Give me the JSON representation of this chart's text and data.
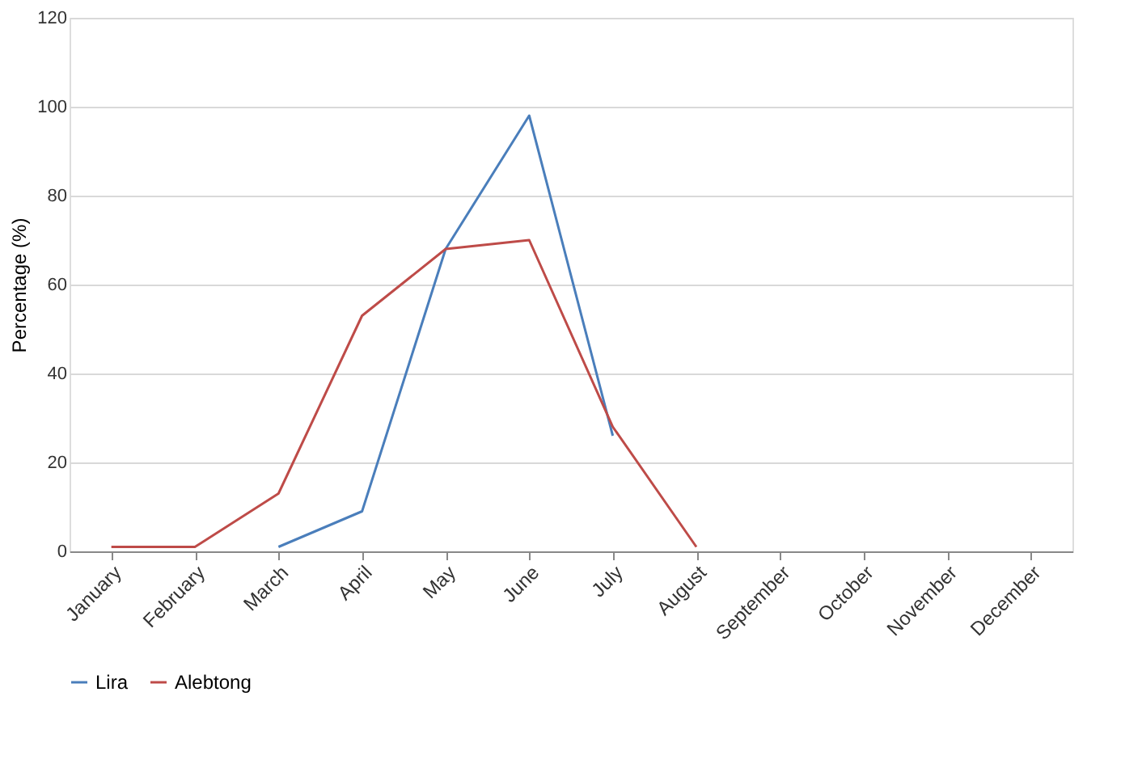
{
  "chart_data": {
    "type": "line",
    "ylabel": "Percentage (%)",
    "categories": [
      "January",
      "February",
      "March",
      "April",
      "May",
      "June",
      "July",
      "August",
      "September",
      "October",
      "November",
      "December"
    ],
    "series": [
      {
        "name": "Lira",
        "color": "#4a7ebb",
        "values": [
          null,
          null,
          1,
          9,
          68,
          98,
          26,
          null,
          null,
          null,
          null,
          null
        ]
      },
      {
        "name": "Alebtong",
        "color": "#be4b48",
        "values": [
          1,
          1,
          13,
          53,
          68,
          70,
          28,
          1,
          null,
          null,
          null,
          null
        ]
      }
    ],
    "ylim": [
      0,
      120
    ],
    "yticks": [
      0,
      20,
      40,
      60,
      80,
      100,
      120
    ],
    "grid": "y",
    "legend": "bottom",
    "marker": "none",
    "line_style": "solid"
  }
}
